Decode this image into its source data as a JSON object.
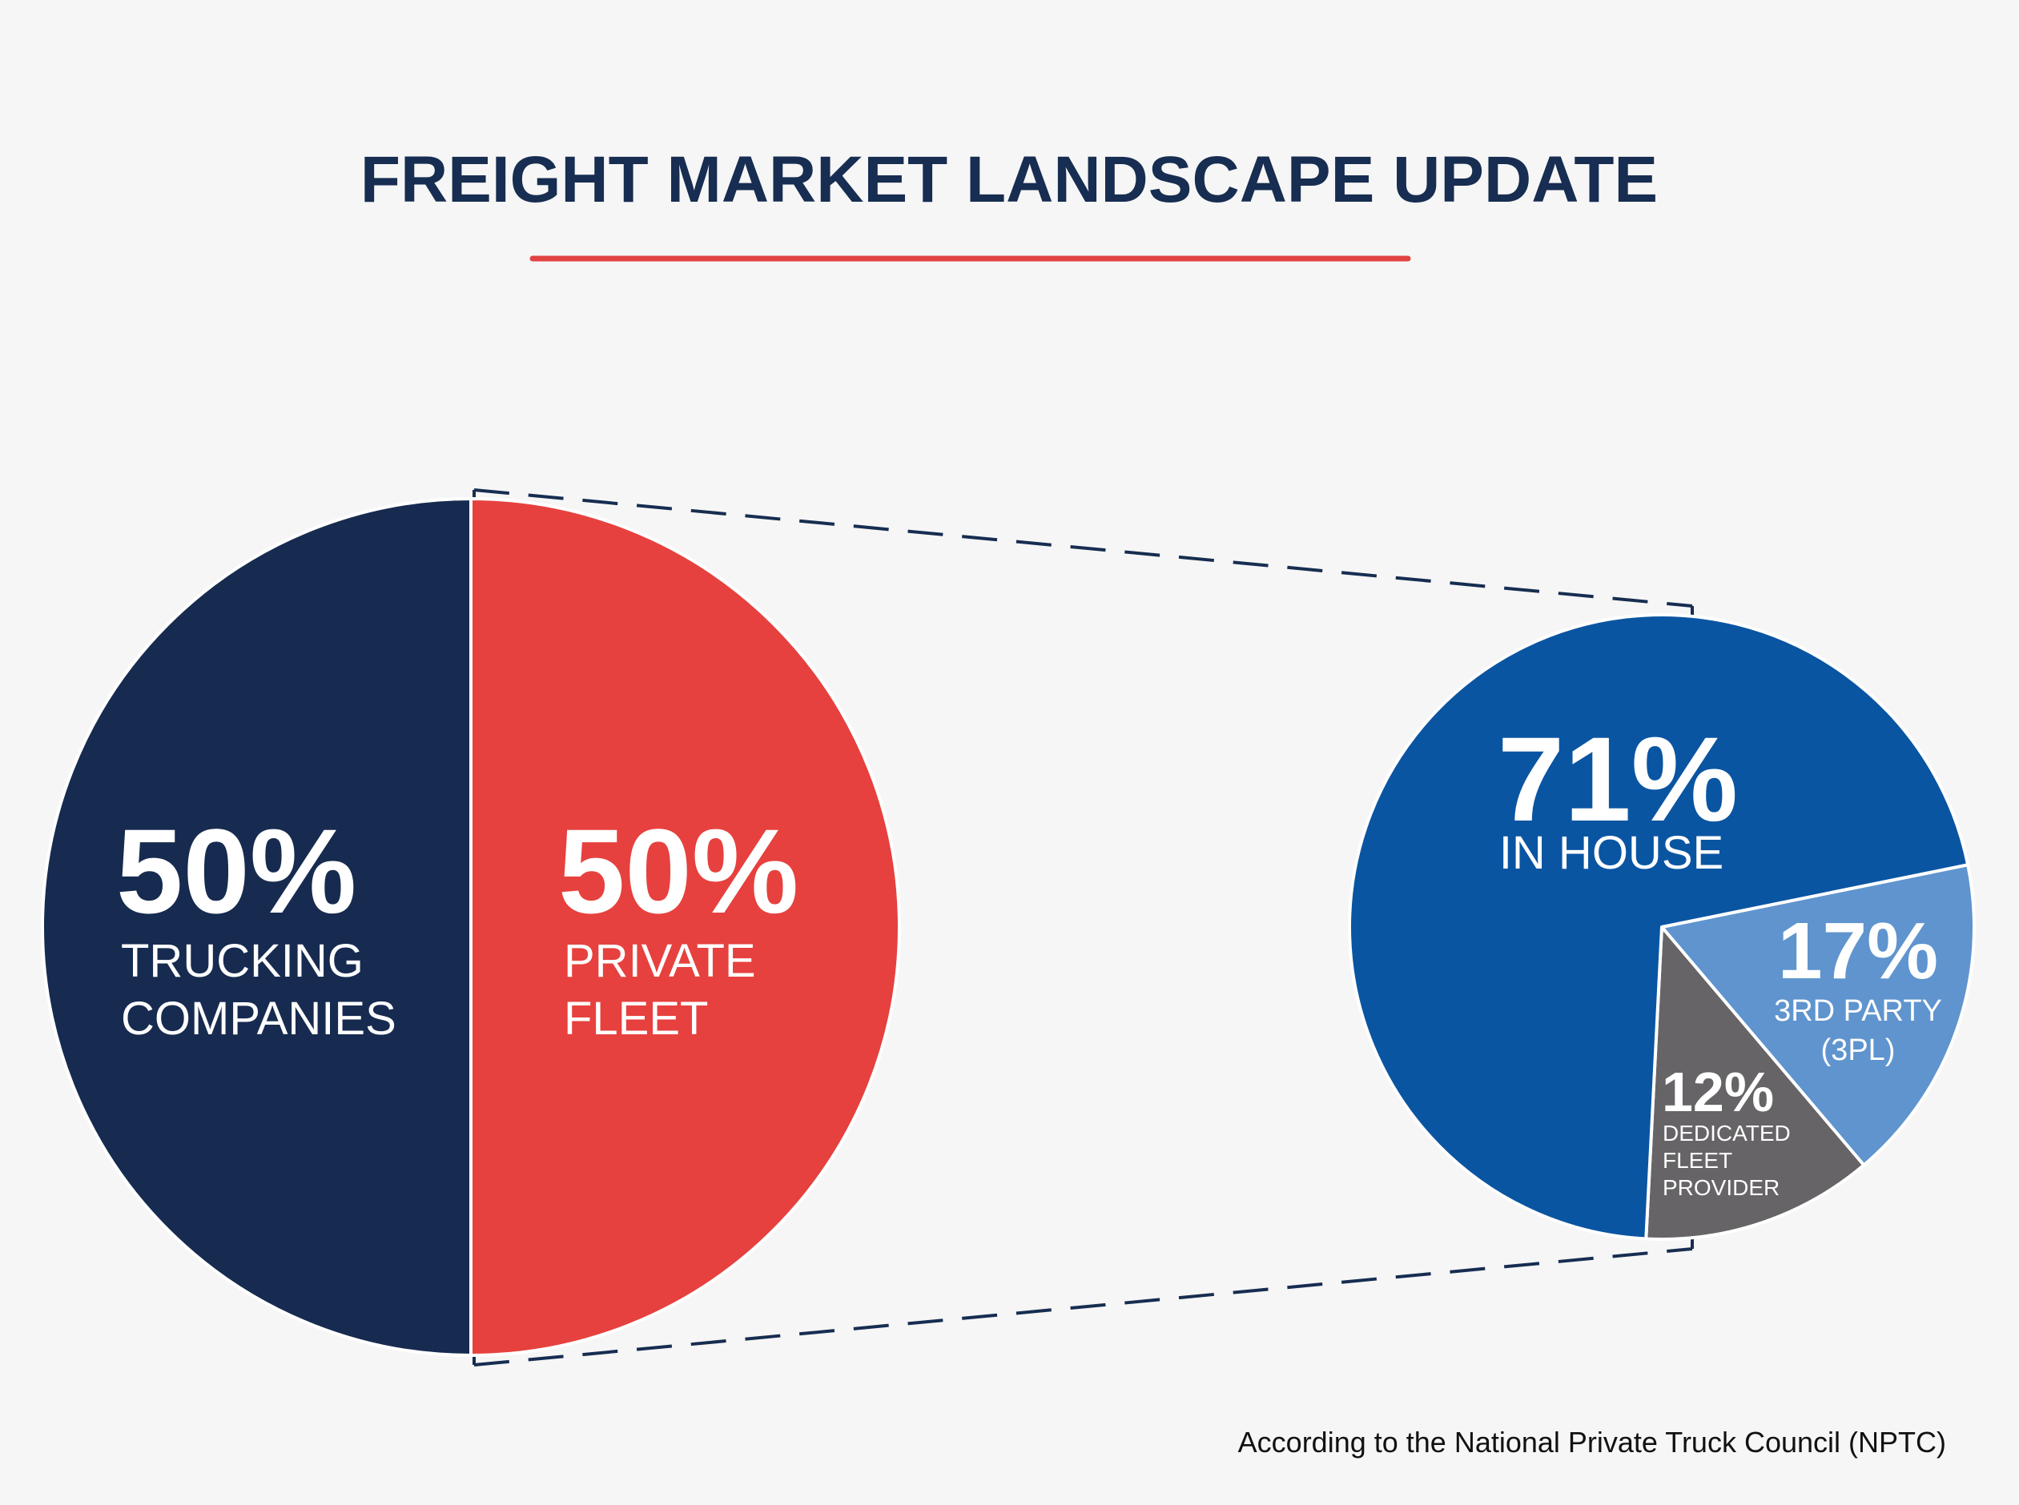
{
  "title": "FREIGHT MARKET LANDSCAPE UPDATE",
  "source": "According to the National Private Truck Council (NPTC)",
  "colors": {
    "background": "#f6f6f6",
    "title": "#172d51",
    "rule": "#e04341",
    "trucking": "#172b50",
    "private": "#e6413e",
    "in_house": "#0a55a2",
    "third_party": "#5f94ce",
    "dedicated": "#666466",
    "connector": "#172d51",
    "label": "#ffffff"
  },
  "chart_data": [
    {
      "type": "pie",
      "slices": [
        {
          "pct_label": "50%",
          "label_lines": [
            "TRUCKING",
            "COMPANIES"
          ],
          "value": 50,
          "color_key": "trucking"
        },
        {
          "pct_label": "50%",
          "label_lines": [
            "PRIVATE",
            "FLEET"
          ],
          "value": 50,
          "color_key": "private"
        }
      ]
    },
    {
      "type": "pie",
      "slices": [
        {
          "pct_label": "71%",
          "label_lines": [
            "IN HOUSE"
          ],
          "value": 71,
          "color_key": "in_house"
        },
        {
          "pct_label": "17%",
          "label_lines": [
            "3RD PARTY",
            "(3PL)"
          ],
          "value": 17,
          "color_key": "third_party"
        },
        {
          "pct_label": "12%",
          "label_lines": [
            "DEDICATED",
            "FLEET",
            "PROVIDER"
          ],
          "value": 12,
          "color_key": "dedicated"
        }
      ]
    }
  ]
}
